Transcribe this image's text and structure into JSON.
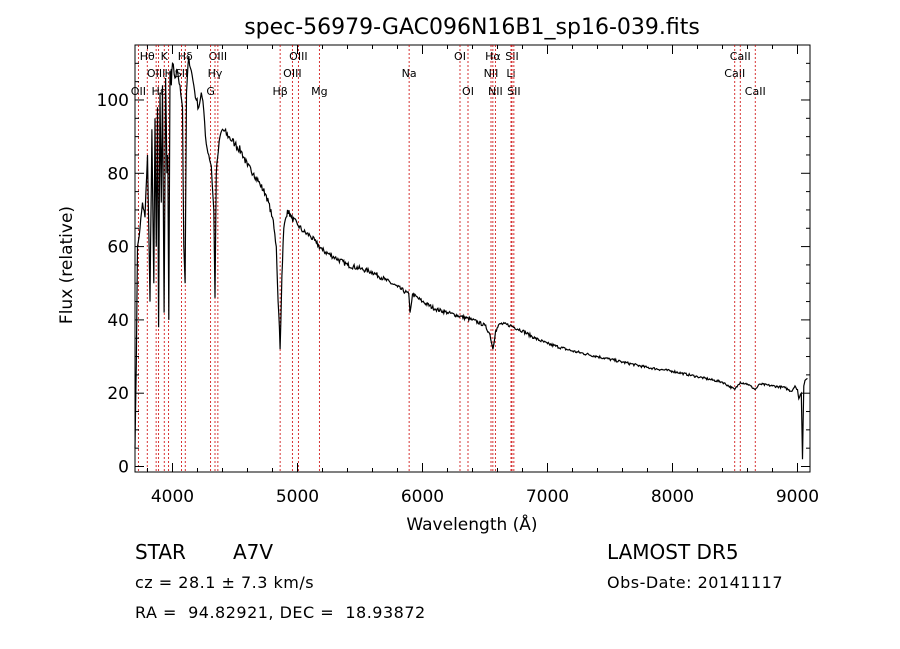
{
  "chart_data": {
    "type": "line",
    "title": "spec-56979-GAC096N16B1_sp16-039.fits",
    "xlabel": "Wavelength (Å)",
    "ylabel": "Flux (relative)",
    "xlim": [
      3700,
      9100
    ],
    "ylim": [
      -1.5,
      115
    ],
    "xticks": [
      4000,
      5000,
      6000,
      7000,
      8000,
      9000
    ],
    "yticks": [
      0,
      20,
      40,
      60,
      80,
      100
    ],
    "grid": false,
    "line_color": "#000000",
    "marker_color": "#cc0000",
    "spectrum": {
      "x": [
        3700,
        3710,
        3720,
        3740,
        3760,
        3780,
        3800,
        3820,
        3835,
        3850,
        3860,
        3870,
        3880,
        3889,
        3900,
        3910,
        3920,
        3933,
        3945,
        3955,
        3962,
        3970,
        3980,
        3990,
        4000,
        4020,
        4040,
        4060,
        4080,
        4090,
        4101,
        4112,
        4130,
        4150,
        4170,
        4190,
        4210,
        4230,
        4250,
        4270,
        4290,
        4310,
        4330,
        4340,
        4350,
        4360,
        4380,
        4400,
        4450,
        4500,
        4550,
        4600,
        4650,
        4700,
        4750,
        4800,
        4830,
        4845,
        4855,
        4861,
        4867,
        4875,
        4890,
        4920,
        4950,
        5000,
        5050,
        5100,
        5150,
        5200,
        5300,
        5400,
        5500,
        5600,
        5700,
        5800,
        5890,
        5900,
        5920,
        6000,
        6100,
        6200,
        6300,
        6400,
        6500,
        6540,
        6563,
        6585,
        6620,
        6700,
        6800,
        6900,
        7000,
        7200,
        7400,
        7600,
        7800,
        8000,
        8200,
        8400,
        8498,
        8542,
        8600,
        8662,
        8700,
        8800,
        8900,
        8950,
        8980,
        9000,
        9010,
        9030,
        9040,
        9050,
        9060,
        9080
      ],
      "y": [
        5,
        28,
        60,
        65,
        72,
        68,
        85,
        45,
        92,
        50,
        95,
        60,
        98,
        38,
        102,
        72,
        104,
        42,
        106,
        80,
        85,
        40,
        108,
        104,
        110,
        106,
        108,
        104,
        98,
        60,
        50,
        102,
        112,
        108,
        104,
        100,
        98,
        102,
        97,
        88,
        85,
        82,
        70,
        46,
        80,
        84,
        90,
        92,
        90,
        88,
        86,
        82,
        80,
        77,
        74,
        68,
        60,
        45,
        38,
        32,
        40,
        52,
        65,
        70,
        68,
        66,
        64,
        63,
        61,
        59,
        57,
        55,
        54,
        53,
        51,
        49,
        47,
        42,
        47,
        45,
        43,
        42,
        41,
        40,
        38.5,
        36,
        32,
        37,
        39,
        38.5,
        37,
        35,
        33.5,
        31.5,
        30,
        28.5,
        27,
        26,
        24.5,
        23,
        21,
        23,
        22.5,
        21,
        22.5,
        22,
        21.5,
        20.5,
        22,
        21,
        18.5,
        20,
        2,
        22,
        23.5,
        24
      ]
    },
    "emission_lines": [
      {
        "label": "OII",
        "wavelength": 3727,
        "row": 3
      },
      {
        "label": "Hθ",
        "wavelength": 3798,
        "row": 1
      },
      {
        "label": "OIII",
        "wavelength": 3869,
        "row": 2
      },
      {
        "label": "Hε",
        "wavelength": 3889,
        "row": 3
      },
      {
        "label": "K",
        "wavelength": 3934,
        "row": 1
      },
      {
        "label": "H",
        "wavelength": 3969,
        "row": 2
      },
      {
        "label": "Hδ",
        "wavelength": 4102,
        "row": 1
      },
      {
        "label": "SII",
        "wavelength": 4072,
        "row": 2
      },
      {
        "label": "OIII",
        "wavelength": 4363,
        "row": 1
      },
      {
        "label": "Hγ",
        "wavelength": 4340,
        "row": 2
      },
      {
        "label": "G",
        "wavelength": 4305,
        "row": 3
      },
      {
        "label": "Hβ",
        "wavelength": 4861,
        "row": 3
      },
      {
        "label": "OIII",
        "wavelength": 4959,
        "row": 2
      },
      {
        "label": "OIII",
        "wavelength": 5007,
        "row": 1
      },
      {
        "label": "Mg",
        "wavelength": 5175,
        "row": 3
      },
      {
        "label": "Na",
        "wavelength": 5893,
        "row": 2
      },
      {
        "label": "OI",
        "wavelength": 6300,
        "row": 1
      },
      {
        "label": "OI",
        "wavelength": 6364,
        "row": 3
      },
      {
        "label": "NII",
        "wavelength": 6548,
        "row": 2
      },
      {
        "label": "Hα",
        "wavelength": 6563,
        "row": 1
      },
      {
        "label": "NII",
        "wavelength": 6583,
        "row": 3
      },
      {
        "label": "SII",
        "wavelength": 6716,
        "row": 1
      },
      {
        "label": "Li",
        "wavelength": 6708,
        "row": 2
      },
      {
        "label": "SII",
        "wavelength": 6731,
        "row": 3
      },
      {
        "label": "CaII",
        "wavelength": 8498,
        "row": 2
      },
      {
        "label": "CaII",
        "wavelength": 8542,
        "row": 1
      },
      {
        "label": "CaII",
        "wavelength": 8662,
        "row": 3
      }
    ]
  },
  "info": {
    "class": "STAR",
    "subclass": "A7V",
    "survey": "LAMOST DR5",
    "redshift": "cz = 28.1 ± 7.3 km/s",
    "obs_date": "Obs-Date: 20141117",
    "coords": "RA =  94.82921, DEC =  18.93872"
  }
}
